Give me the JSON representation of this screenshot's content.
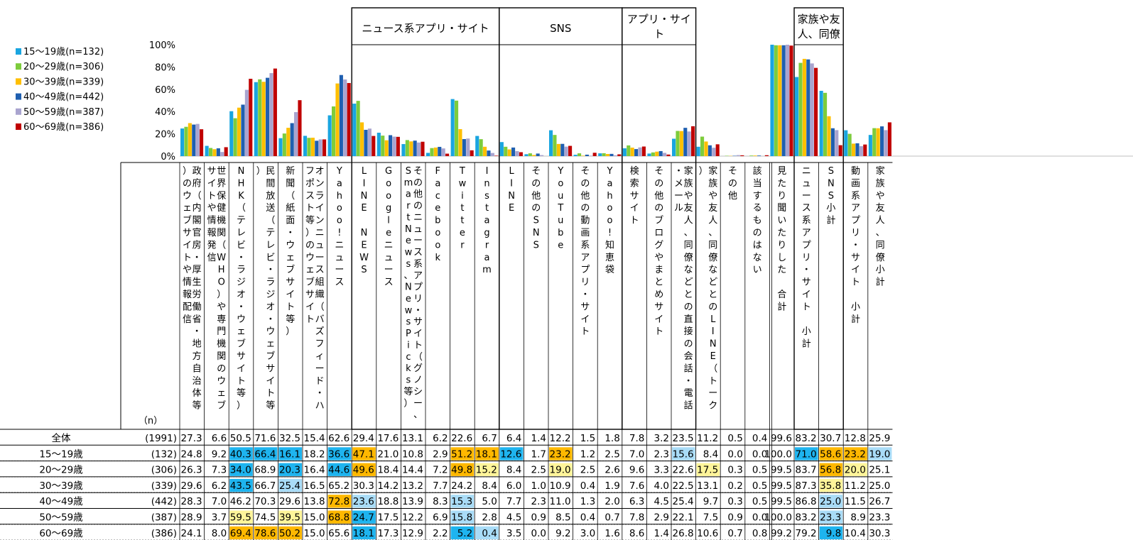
{
  "chart_data": {
    "type": "bar",
    "ylim": [
      0,
      100
    ],
    "yticks": [
      "0%",
      "20%",
      "40%",
      "60%",
      "80%",
      "100%"
    ],
    "n_label": "（n）",
    "series": [
      {
        "name": "15～19歳(n=132)",
        "color": "#19a5e0"
      },
      {
        "name": "20～29歳(n=306)",
        "color": "#7dcc3c"
      },
      {
        "name": "30～39歳(n=339)",
        "color": "#ffbf00"
      },
      {
        "name": "40～49歳(n=442)",
        "color": "#1f5fb0"
      },
      {
        "name": "50～59歳(n=387)",
        "color": "#a9a4cf"
      },
      {
        "name": "60～69歳(n=386)",
        "color": "#c00000"
      }
    ],
    "groups": [
      {
        "label": "ニュース系アプリ・サイト",
        "start": 7,
        "end": 13
      },
      {
        "label": "SNS",
        "start": 13,
        "end": 18
      },
      {
        "label": "アプリ・サイト",
        "start": 18,
        "end": 21
      },
      {
        "label": "家族や友人、同僚",
        "start": 25,
        "end": 27
      }
    ],
    "categories": [
      "政府（内閣官房・厚生労働省・地方自治体等）のウェブサイトや情報配信",
      "世界保健機関（WHO）や専門機関のウェブサイトや情報発信",
      "NHK（テレビ・ラジオ・ウェブサイト等）",
      "民間放送（テレビ・ラジオ・ウェブサイト等）",
      "新聞（紙面・ウェブサイト等）",
      "オンラインニュース組織（バズフィード・ハフポスト等）のウェブサイト",
      "Yahoo!ニュース",
      "LINE NEWS",
      "Googleニュース",
      "その他のニュース系アプリ・サイト（グノシー、SmartNews、NewsPicks等）",
      "Facebook",
      "Twitter",
      "Instagram",
      "LINE",
      "その他のSNS",
      "YouTube",
      "その他の動画系アプリ・サイト",
      "Yahoo!知恵袋",
      "検索サイト",
      "その他のブログやまとめサイト",
      "家族や友人、同僚などとの直接の会話・電話・メール",
      "家族や友人、同僚などとのLINE（トーク）",
      "その他",
      "該当するものはない",
      "見たり聞いたりした 合計",
      "ニュース系アプリ・サイト 小計",
      "SNS小計",
      "動画系アプリ・サイト 小計",
      "家族や友人、同僚小計"
    ],
    "rows": [
      {
        "label": "全体",
        "n": "(1991)",
        "values": [
          "27.3",
          "6.6",
          "50.5",
          "71.6",
          "32.5",
          "15.4",
          "62.6",
          "29.4",
          "17.6",
          "13.1",
          "6.2",
          "22.6",
          "6.7",
          "6.4",
          "1.4",
          "12.2",
          "1.5",
          "1.8",
          "7.8",
          "3.2",
          "23.5",
          "11.2",
          "0.5",
          "0.4",
          "99.6",
          "83.2",
          "30.7",
          "12.8",
          "25.9"
        ]
      },
      {
        "label": "15～19歳",
        "n": "(132)",
        "values": [
          "24.8",
          "9.2",
          "40.3",
          "66.4",
          "16.1",
          "18.2",
          "36.6",
          "47.1",
          "21.0",
          "10.8",
          "2.9",
          "51.2",
          "18.1",
          "12.6",
          "1.7",
          "23.2",
          "1.2",
          "2.5",
          "7.0",
          "2.3",
          "15.6",
          "8.4",
          "0.0",
          "0.0",
          "100.0",
          "71.0",
          "58.6",
          "23.2",
          "19.0"
        ]
      },
      {
        "label": "20～29歳",
        "n": "(306)",
        "values": [
          "26.3",
          "7.3",
          "34.0",
          "68.9",
          "20.3",
          "16.4",
          "44.6",
          "49.6",
          "18.4",
          "14.4",
          "7.2",
          "49.8",
          "15.2",
          "8.4",
          "2.5",
          "19.0",
          "2.5",
          "2.6",
          "9.6",
          "3.3",
          "22.6",
          "17.5",
          "0.3",
          "0.5",
          "99.5",
          "83.7",
          "56.8",
          "20.0",
          "25.1"
        ]
      },
      {
        "label": "30～39歳",
        "n": "(339)",
        "values": [
          "29.6",
          "6.2",
          "43.5",
          "66.7",
          "25.4",
          "16.5",
          "65.2",
          "30.3",
          "14.2",
          "13.2",
          "7.7",
          "24.2",
          "8.4",
          "6.0",
          "1.0",
          "10.9",
          "0.4",
          "1.9",
          "7.6",
          "4.0",
          "22.5",
          "13.1",
          "0.2",
          "0.5",
          "99.5",
          "87.3",
          "35.8",
          "11.2",
          "25.0"
        ]
      },
      {
        "label": "40～49歳",
        "n": "(442)",
        "values": [
          "28.3",
          "7.0",
          "46.2",
          "70.3",
          "29.6",
          "13.8",
          "72.8",
          "23.6",
          "18.8",
          "13.9",
          "8.3",
          "15.3",
          "5.0",
          "7.7",
          "2.3",
          "11.0",
          "1.3",
          "2.0",
          "6.3",
          "4.5",
          "25.4",
          "9.7",
          "0.3",
          "0.5",
          "99.5",
          "86.8",
          "25.0",
          "11.5",
          "26.7"
        ]
      },
      {
        "label": "50～59歳",
        "n": "(387)",
        "values": [
          "28.9",
          "3.7",
          "59.5",
          "74.5",
          "39.5",
          "15.0",
          "68.8",
          "24.7",
          "17.5",
          "12.2",
          "6.9",
          "15.8",
          "2.8",
          "4.5",
          "0.9",
          "8.5",
          "0.4",
          "0.7",
          "7.8",
          "2.9",
          "22.1",
          "7.5",
          "0.9",
          "0.0",
          "100.0",
          "83.2",
          "23.3",
          "8.9",
          "23.3"
        ]
      },
      {
        "label": "60～69歳",
        "n": "(386)",
        "values": [
          "24.1",
          "8.0",
          "69.4",
          "78.6",
          "50.2",
          "15.0",
          "65.6",
          "18.1",
          "17.3",
          "12.9",
          "2.2",
          "5.2",
          "0.4",
          "3.5",
          "0.0",
          "9.2",
          "3.0",
          "1.6",
          "8.6",
          "1.4",
          "26.8",
          "10.6",
          "0.7",
          "0.8",
          "99.2",
          "79.2",
          "9.8",
          "10.4",
          "30.3"
        ]
      }
    ],
    "highlights": [
      [
        null,
        null,
        null,
        null,
        null,
        null,
        null,
        null,
        null,
        null,
        null,
        null,
        null,
        null,
        null,
        null,
        null,
        null,
        null,
        null,
        null,
        null,
        null,
        null,
        null,
        null,
        null,
        null,
        null
      ],
      [
        null,
        null,
        "b",
        "b",
        "b",
        null,
        "b",
        "o",
        null,
        null,
        null,
        "o",
        "o",
        "b",
        null,
        "o",
        null,
        null,
        null,
        null,
        "lb",
        null,
        null,
        null,
        null,
        "b",
        "o",
        "o",
        "lb"
      ],
      [
        null,
        null,
        "b",
        null,
        "b",
        null,
        "b",
        "o",
        null,
        null,
        null,
        "o",
        "ly",
        null,
        null,
        "ly",
        null,
        null,
        null,
        null,
        null,
        "ly",
        null,
        null,
        null,
        null,
        "o",
        "ly",
        null
      ],
      [
        null,
        null,
        "b",
        null,
        "lb",
        null,
        null,
        null,
        null,
        null,
        null,
        null,
        null,
        null,
        null,
        null,
        null,
        null,
        null,
        null,
        null,
        null,
        null,
        null,
        null,
        null,
        "ly",
        null,
        null
      ],
      [
        null,
        null,
        null,
        null,
        null,
        null,
        "o",
        "lb",
        null,
        null,
        null,
        "lb",
        null,
        null,
        null,
        null,
        null,
        null,
        null,
        null,
        null,
        null,
        null,
        null,
        null,
        null,
        "lb",
        null,
        null
      ],
      [
        null,
        null,
        "ly",
        null,
        "ly",
        null,
        "o",
        "b",
        null,
        null,
        null,
        "lb",
        null,
        null,
        null,
        null,
        null,
        null,
        null,
        null,
        null,
        null,
        null,
        null,
        null,
        null,
        "lb",
        null,
        null
      ],
      [
        null,
        null,
        "o",
        "o",
        "o",
        null,
        null,
        "b",
        null,
        null,
        null,
        "b",
        "lb",
        null,
        null,
        null,
        null,
        null,
        null,
        null,
        null,
        null,
        null,
        null,
        null,
        null,
        "b",
        null,
        null
      ]
    ],
    "highlight_colors": {
      "o": "#ffb800",
      "ly": "#fff59a",
      "b": "#1eb4ef",
      "lb": "#a9dcf7"
    }
  }
}
